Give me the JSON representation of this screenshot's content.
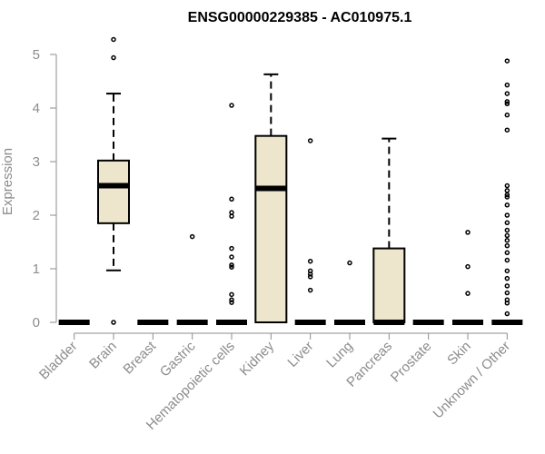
{
  "chart_data": {
    "type": "box",
    "title": "ENSG00000229385 - AC010975.1",
    "ylabel": "Expression",
    "xlabel": "",
    "ylim": [
      0,
      5.35
    ],
    "yticks": [
      0,
      1,
      2,
      3,
      4,
      5
    ],
    "grid": false,
    "legend": "none",
    "box_fill": "#ede6cd",
    "categories": [
      "Bladder",
      "Brain",
      "Breast",
      "Gastric",
      "Hematopoietic cells",
      "Kidney",
      "Liver",
      "Lung",
      "Pancreas",
      "Prostate",
      "Skin",
      "Unknown / Other"
    ],
    "boxes": [
      {
        "q1": 0,
        "median": 0,
        "q3": 0,
        "whisker_low": 0,
        "whisker_high": 0,
        "outliers": []
      },
      {
        "q1": 1.85,
        "median": 2.55,
        "q3": 3.02,
        "whisker_low": 0.97,
        "whisker_high": 4.27,
        "outliers": [
          5.28,
          4.94,
          0
        ]
      },
      {
        "q1": 0,
        "median": 0,
        "q3": 0,
        "whisker_low": 0,
        "whisker_high": 0,
        "outliers": []
      },
      {
        "q1": 0,
        "median": 0,
        "q3": 0,
        "whisker_low": 0,
        "whisker_high": 0,
        "outliers": [
          1.6
        ]
      },
      {
        "q1": 0,
        "median": 0,
        "q3": 0,
        "whisker_low": 0,
        "whisker_high": 0,
        "outliers": [
          4.05,
          2.3,
          2.05,
          1.98,
          1.38,
          1.22,
          1.07,
          1.03,
          0.52,
          0.42,
          0.37
        ]
      },
      {
        "q1": 0,
        "median": 2.5,
        "q3": 3.48,
        "whisker_low": 0,
        "whisker_high": 4.63,
        "outliers": []
      },
      {
        "q1": 0,
        "median": 0,
        "q3": 0,
        "whisker_low": 0,
        "whisker_high": 0,
        "outliers": [
          3.39,
          1.14,
          0.96,
          0.9,
          0.85,
          0.6
        ]
      },
      {
        "q1": 0,
        "median": 0,
        "q3": 0,
        "whisker_low": 0,
        "whisker_high": 0,
        "outliers": [
          1.11
        ]
      },
      {
        "q1": 0,
        "median": 0,
        "q3": 1.38,
        "whisker_low": 0,
        "whisker_high": 3.43,
        "outliers": []
      },
      {
        "q1": 0,
        "median": 0,
        "q3": 0,
        "whisker_low": 0,
        "whisker_high": 0,
        "outliers": []
      },
      {
        "q1": 0,
        "median": 0,
        "q3": 0,
        "whisker_low": 0,
        "whisker_high": 0,
        "outliers": [
          1.68,
          1.04,
          0.54
        ]
      },
      {
        "q1": 0,
        "median": 0,
        "q3": 0,
        "whisker_low": 0,
        "whisker_high": 0,
        "outliers": [
          4.88,
          4.43,
          4.27,
          4.12,
          4.08,
          3.87,
          3.59,
          2.55,
          2.46,
          2.38,
          2.34,
          2.19,
          2.0,
          1.86,
          1.72,
          1.62,
          1.53,
          1.43,
          1.3,
          1.16,
          0.96,
          0.82,
          0.68,
          0.55,
          0.42,
          0.36,
          0.16
        ]
      }
    ]
  }
}
